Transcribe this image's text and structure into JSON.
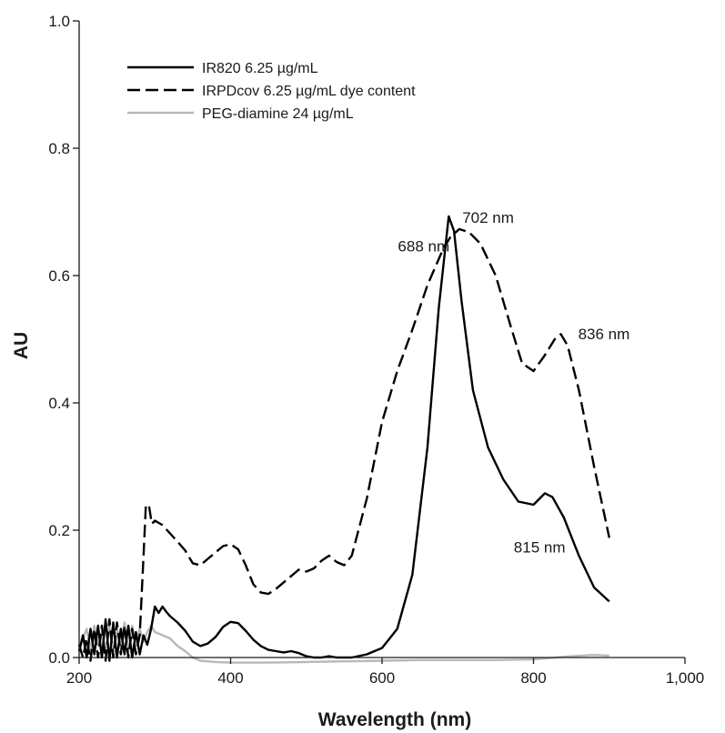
{
  "chart_data": {
    "type": "line",
    "title": "",
    "xlabel": "Wavelength (nm)",
    "ylabel": "AU",
    "xlim": [
      200,
      1000
    ],
    "ylim": [
      0,
      1.0
    ],
    "grid": false,
    "legend_placement": "top-left",
    "x_ticks": [
      200,
      400,
      600,
      800,
      1000
    ],
    "x_tick_labels": [
      "200",
      "400",
      "600",
      "800",
      "1,000"
    ],
    "y_ticks": [
      0.0,
      0.2,
      0.4,
      0.6,
      0.8,
      1.0
    ],
    "y_tick_labels": [
      "0.0",
      "0.2",
      "0.4",
      "0.6",
      "0.8",
      "1.0"
    ],
    "series": [
      {
        "name": "IR820 6.25 µg/mL",
        "style": "solid",
        "color": "#000000",
        "points": [
          [
            200,
            0.01
          ],
          [
            205,
            0.035
          ],
          [
            210,
            0.0
          ],
          [
            215,
            0.045
          ],
          [
            220,
            0.005
          ],
          [
            225,
            0.05
          ],
          [
            230,
            0.0
          ],
          [
            235,
            0.06
          ],
          [
            240,
            -0.005
          ],
          [
            245,
            0.055
          ],
          [
            250,
            0.0
          ],
          [
            255,
            0.045
          ],
          [
            260,
            0.005
          ],
          [
            265,
            0.05
          ],
          [
            270,
            0.0
          ],
          [
            275,
            0.04
          ],
          [
            280,
            0.005
          ],
          [
            285,
            0.035
          ],
          [
            290,
            0.02
          ],
          [
            295,
            0.045
          ],
          [
            300,
            0.08
          ],
          [
            305,
            0.07
          ],
          [
            310,
            0.08
          ],
          [
            315,
            0.072
          ],
          [
            320,
            0.065
          ],
          [
            330,
            0.055
          ],
          [
            340,
            0.042
          ],
          [
            350,
            0.025
          ],
          [
            360,
            0.018
          ],
          [
            370,
            0.022
          ],
          [
            380,
            0.032
          ],
          [
            390,
            0.048
          ],
          [
            400,
            0.056
          ],
          [
            410,
            0.054
          ],
          [
            420,
            0.042
          ],
          [
            430,
            0.028
          ],
          [
            440,
            0.018
          ],
          [
            450,
            0.012
          ],
          [
            460,
            0.01
          ],
          [
            470,
            0.008
          ],
          [
            480,
            0.01
          ],
          [
            490,
            0.007
          ],
          [
            500,
            0.002
          ],
          [
            510,
            0.0
          ],
          [
            520,
            0.0
          ],
          [
            530,
            0.002
          ],
          [
            540,
            0.0
          ],
          [
            560,
            0.0
          ],
          [
            580,
            0.005
          ],
          [
            600,
            0.015
          ],
          [
            620,
            0.045
          ],
          [
            640,
            0.13
          ],
          [
            660,
            0.33
          ],
          [
            675,
            0.55
          ],
          [
            688,
            0.693
          ],
          [
            695,
            0.67
          ],
          [
            705,
            0.56
          ],
          [
            720,
            0.42
          ],
          [
            740,
            0.33
          ],
          [
            760,
            0.28
          ],
          [
            780,
            0.245
          ],
          [
            800,
            0.24
          ],
          [
            815,
            0.258
          ],
          [
            825,
            0.252
          ],
          [
            840,
            0.22
          ],
          [
            860,
            0.16
          ],
          [
            880,
            0.11
          ],
          [
            900,
            0.088
          ]
        ]
      },
      {
        "name": "IRPDcov 6.25 µg/mL dye content",
        "style": "dashed",
        "color": "#000000",
        "points": [
          [
            200,
            0.02
          ],
          [
            205,
            0.0
          ],
          [
            210,
            0.03
          ],
          [
            215,
            -0.005
          ],
          [
            220,
            0.045
          ],
          [
            225,
            0.0
          ],
          [
            230,
            0.05
          ],
          [
            235,
            -0.005
          ],
          [
            240,
            0.06
          ],
          [
            245,
            0.0
          ],
          [
            250,
            0.055
          ],
          [
            255,
            0.005
          ],
          [
            260,
            0.05
          ],
          [
            265,
            0.0
          ],
          [
            270,
            0.045
          ],
          [
            275,
            0.005
          ],
          [
            280,
            0.035
          ],
          [
            285,
            0.16
          ],
          [
            288,
            0.238
          ],
          [
            292,
            0.24
          ],
          [
            296,
            0.21
          ],
          [
            300,
            0.215
          ],
          [
            310,
            0.208
          ],
          [
            320,
            0.195
          ],
          [
            330,
            0.182
          ],
          [
            340,
            0.168
          ],
          [
            350,
            0.148
          ],
          [
            360,
            0.145
          ],
          [
            370,
            0.155
          ],
          [
            380,
            0.165
          ],
          [
            390,
            0.175
          ],
          [
            400,
            0.178
          ],
          [
            410,
            0.17
          ],
          [
            420,
            0.145
          ],
          [
            430,
            0.115
          ],
          [
            440,
            0.102
          ],
          [
            450,
            0.1
          ],
          [
            460,
            0.108
          ],
          [
            470,
            0.118
          ],
          [
            480,
            0.128
          ],
          [
            490,
            0.138
          ],
          [
            500,
            0.135
          ],
          [
            510,
            0.14
          ],
          [
            520,
            0.152
          ],
          [
            530,
            0.16
          ],
          [
            540,
            0.15
          ],
          [
            550,
            0.145
          ],
          [
            560,
            0.16
          ],
          [
            580,
            0.25
          ],
          [
            600,
            0.37
          ],
          [
            620,
            0.45
          ],
          [
            640,
            0.515
          ],
          [
            660,
            0.585
          ],
          [
            680,
            0.64
          ],
          [
            690,
            0.66
          ],
          [
            702,
            0.673
          ],
          [
            715,
            0.668
          ],
          [
            730,
            0.65
          ],
          [
            750,
            0.6
          ],
          [
            770,
            0.52
          ],
          [
            785,
            0.462
          ],
          [
            800,
            0.45
          ],
          [
            815,
            0.475
          ],
          [
            828,
            0.5
          ],
          [
            836,
            0.508
          ],
          [
            845,
            0.49
          ],
          [
            860,
            0.42
          ],
          [
            880,
            0.3
          ],
          [
            900,
            0.188
          ]
        ]
      },
      {
        "name": "PEG-diamine 24 µg/mL",
        "style": "solid",
        "color": "#b8b8b8",
        "points": [
          [
            200,
            0.01
          ],
          [
            205,
            0.03
          ],
          [
            210,
            0.045
          ],
          [
            215,
            0.01
          ],
          [
            220,
            0.05
          ],
          [
            225,
            0.02
          ],
          [
            230,
            0.04
          ],
          [
            235,
            0.005
          ],
          [
            240,
            0.05
          ],
          [
            245,
            0.0
          ],
          [
            250,
            0.045
          ],
          [
            255,
            0.015
          ],
          [
            260,
            0.055
          ],
          [
            265,
            0.01
          ],
          [
            270,
            0.05
          ],
          [
            275,
            0.02
          ],
          [
            280,
            0.045
          ],
          [
            285,
            0.025
          ],
          [
            290,
            0.04
          ],
          [
            295,
            0.05
          ],
          [
            300,
            0.04
          ],
          [
            310,
            0.035
          ],
          [
            320,
            0.03
          ],
          [
            330,
            0.018
          ],
          [
            340,
            0.01
          ],
          [
            350,
            0.0
          ],
          [
            360,
            -0.005
          ],
          [
            380,
            -0.007
          ],
          [
            400,
            -0.008
          ],
          [
            450,
            -0.008
          ],
          [
            500,
            -0.007
          ],
          [
            550,
            -0.006
          ],
          [
            600,
            -0.005
          ],
          [
            650,
            -0.004
          ],
          [
            700,
            -0.004
          ],
          [
            750,
            -0.004
          ],
          [
            800,
            -0.003
          ],
          [
            850,
            0.002
          ],
          [
            880,
            0.004
          ],
          [
            900,
            0.003
          ]
        ]
      }
    ],
    "annotations": [
      {
        "text": "688 nm",
        "x": 655,
        "y": 0.638
      },
      {
        "text": "702 nm",
        "x": 740,
        "y": 0.683
      },
      {
        "text": "836 nm",
        "x": 893,
        "y": 0.5
      },
      {
        "text": "815 nm",
        "x": 808,
        "y": 0.165
      }
    ]
  }
}
